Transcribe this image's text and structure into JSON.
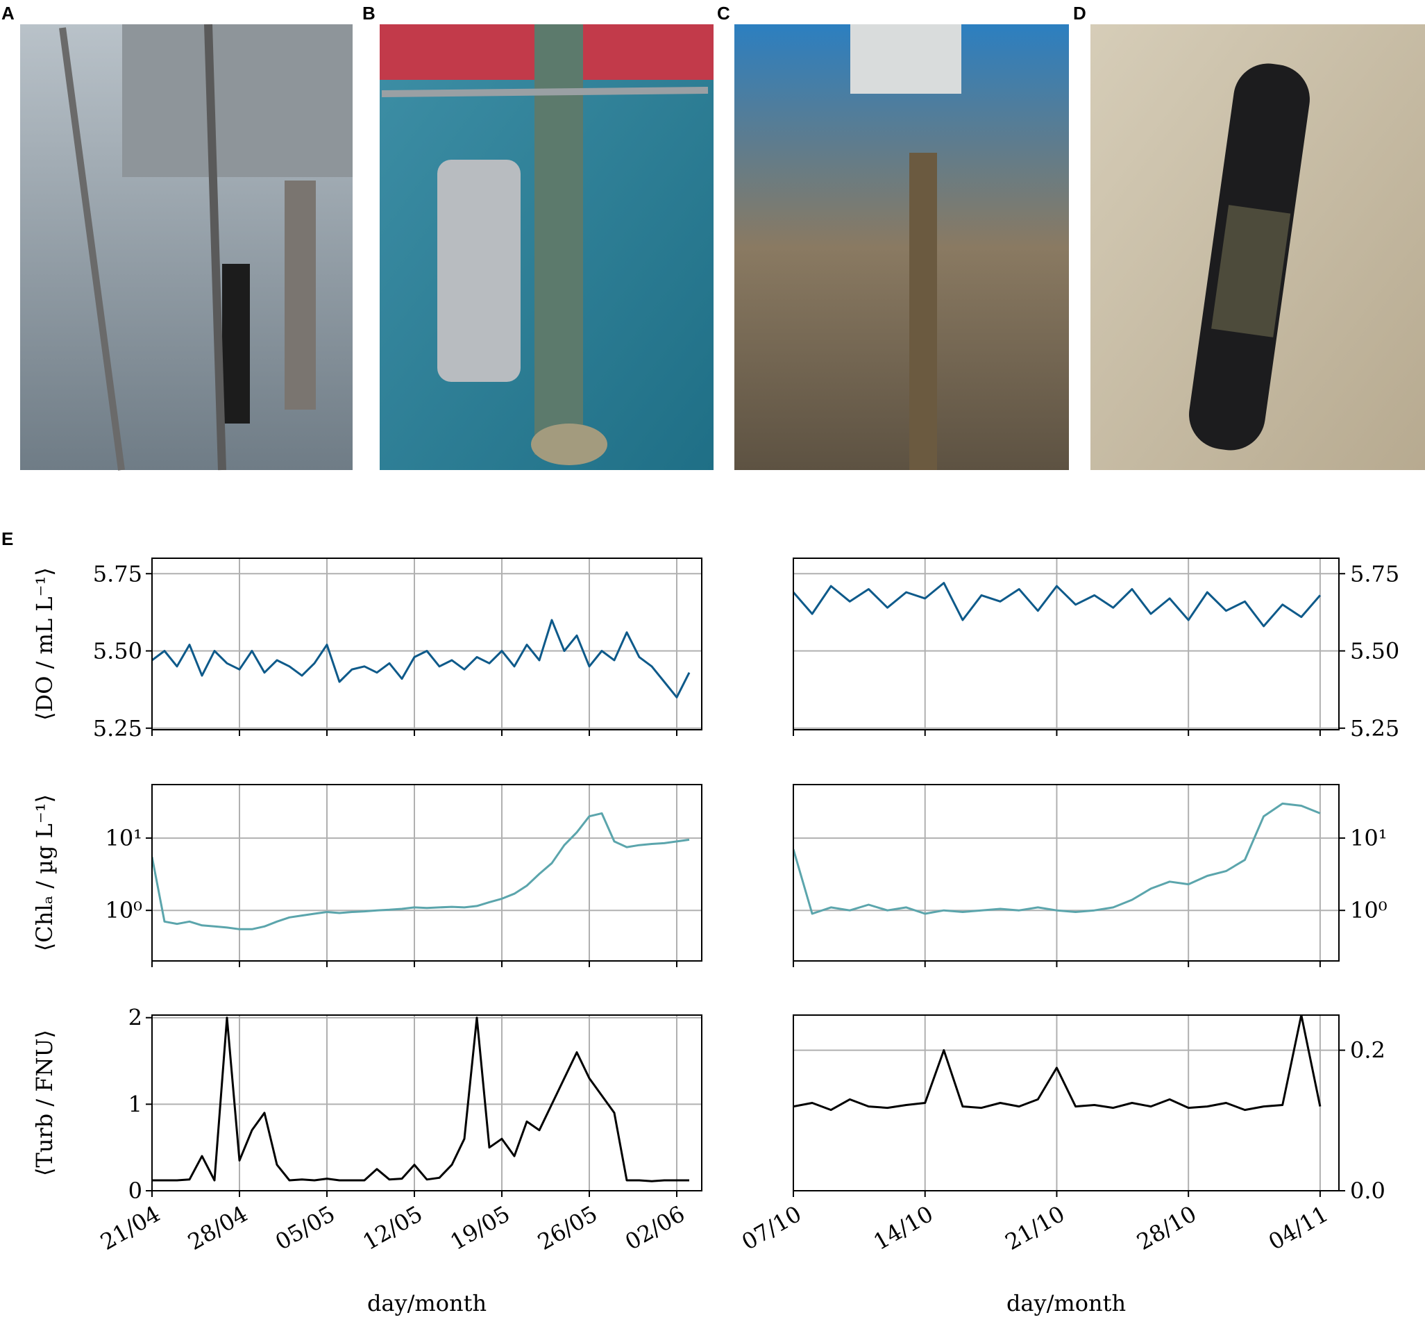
{
  "panel_labels": [
    "A",
    "B",
    "C",
    "D",
    "E"
  ],
  "chart_data": [
    {
      "type": "line",
      "ylabel": "⟨DO / mL L⁻¹⟩",
      "y_axis_side": "left",
      "grid": true,
      "log_y": false,
      "x": [
        "21/04",
        "22/04",
        "23/04",
        "24/04",
        "25/04",
        "26/04",
        "27/04",
        "28/04",
        "29/04",
        "30/04",
        "01/05",
        "02/05",
        "03/05",
        "04/05",
        "05/05",
        "06/05",
        "07/05",
        "08/05",
        "09/05",
        "10/05",
        "11/05",
        "12/05",
        "13/05",
        "14/05",
        "15/05",
        "16/05",
        "17/05",
        "18/05",
        "19/05",
        "20/05",
        "21/05",
        "22/05",
        "23/05",
        "24/05",
        "25/05",
        "26/05",
        "27/05",
        "28/05",
        "29/05",
        "30/05",
        "31/05",
        "01/06",
        "02/06",
        "03/06"
      ],
      "xlim": [
        "21/04",
        "04/06"
      ],
      "xticks": [
        "21/04",
        "28/04",
        "05/05",
        "12/05",
        "19/05",
        "26/05",
        "02/06"
      ],
      "ylim": [
        5.245,
        5.8
      ],
      "yticks": [
        5.25,
        {
          "value": 5.5,
          "label": "5.50"
        },
        5.75
      ],
      "series": [
        {
          "name": "DO",
          "color": "#0e5a8a",
          "values": [
            5.47,
            5.5,
            5.45,
            5.52,
            5.42,
            5.5,
            5.46,
            5.44,
            5.5,
            5.43,
            5.47,
            5.45,
            5.42,
            5.46,
            5.52,
            5.4,
            5.44,
            5.45,
            5.43,
            5.46,
            5.41,
            5.48,
            5.5,
            5.45,
            5.47,
            5.44,
            5.48,
            5.46,
            5.5,
            5.45,
            5.52,
            5.47,
            5.6,
            5.5,
            5.55,
            5.45,
            5.5,
            5.47,
            5.56,
            5.48,
            5.45,
            5.4,
            5.35,
            5.43
          ]
        }
      ]
    },
    {
      "type": "line",
      "y_axis_side": "right",
      "grid": true,
      "log_y": false,
      "x": [
        "07/10",
        "08/10",
        "09/10",
        "10/10",
        "11/10",
        "12/10",
        "13/10",
        "14/10",
        "15/10",
        "16/10",
        "17/10",
        "18/10",
        "19/10",
        "20/10",
        "21/10",
        "22/10",
        "23/10",
        "24/10",
        "25/10",
        "26/10",
        "27/10",
        "28/10",
        "29/10",
        "30/10",
        "31/10",
        "01/11",
        "02/11",
        "03/11",
        "04/11"
      ],
      "xlim": [
        "07/10",
        "05/11"
      ],
      "xticks": [
        "07/10",
        "14/10",
        "21/10",
        "28/10",
        "04/11"
      ],
      "ylim": [
        5.245,
        5.8
      ],
      "yticks": [
        5.25,
        {
          "value": 5.5,
          "label": "5.50"
        },
        5.75
      ],
      "series": [
        {
          "name": "DO",
          "color": "#0e5a8a",
          "values": [
            5.69,
            5.62,
            5.71,
            5.66,
            5.7,
            5.64,
            5.69,
            5.67,
            5.72,
            5.6,
            5.68,
            5.66,
            5.7,
            5.63,
            5.71,
            5.65,
            5.68,
            5.64,
            5.7,
            5.62,
            5.67,
            5.6,
            5.69,
            5.63,
            5.66,
            5.58,
            5.65,
            5.61,
            5.68
          ]
        }
      ]
    },
    {
      "type": "line",
      "ylabel": "⟨Chlₐ / µg L⁻¹⟩",
      "y_axis_side": "left",
      "grid": true,
      "log_y": true,
      "x": [
        "21/04",
        "22/04",
        "23/04",
        "24/04",
        "25/04",
        "26/04",
        "27/04",
        "28/04",
        "29/04",
        "30/04",
        "01/05",
        "02/05",
        "03/05",
        "04/05",
        "05/05",
        "06/05",
        "07/05",
        "08/05",
        "09/05",
        "10/05",
        "11/05",
        "12/05",
        "13/05",
        "14/05",
        "15/05",
        "16/05",
        "17/05",
        "18/05",
        "19/05",
        "20/05",
        "21/05",
        "22/05",
        "23/05",
        "24/05",
        "25/05",
        "26/05",
        "27/05",
        "28/05",
        "29/05",
        "30/05",
        "31/05",
        "01/06",
        "02/06",
        "03/06"
      ],
      "xlim": [
        "21/04",
        "04/06"
      ],
      "xticks": [
        "21/04",
        "28/04",
        "05/05",
        "12/05",
        "19/05",
        "26/05",
        "02/06"
      ],
      "ylim": [
        0.2,
        55
      ],
      "yticks": [
        {
          "value": 1,
          "label": "10⁰"
        },
        {
          "value": 10,
          "label": "10¹"
        }
      ],
      "series": [
        {
          "name": "Chla",
          "color": "#5ba5ac",
          "values": [
            5.5,
            0.7,
            0.65,
            0.7,
            0.62,
            0.6,
            0.58,
            0.55,
            0.55,
            0.6,
            0.7,
            0.8,
            0.85,
            0.9,
            0.95,
            0.92,
            0.95,
            0.97,
            1.0,
            1.02,
            1.05,
            1.1,
            1.08,
            1.1,
            1.12,
            1.1,
            1.15,
            1.3,
            1.45,
            1.7,
            2.2,
            3.2,
            4.5,
            8,
            12,
            20,
            22,
            9,
            7.5,
            8,
            8.3,
            8.5,
            9,
            9.5
          ]
        }
      ]
    },
    {
      "type": "line",
      "y_axis_side": "right",
      "grid": true,
      "log_y": true,
      "x": [
        "07/10",
        "08/10",
        "09/10",
        "10/10",
        "11/10",
        "12/10",
        "13/10",
        "14/10",
        "15/10",
        "16/10",
        "17/10",
        "18/10",
        "19/10",
        "20/10",
        "21/10",
        "22/10",
        "23/10",
        "24/10",
        "25/10",
        "26/10",
        "27/10",
        "28/10",
        "29/10",
        "30/10",
        "31/10",
        "01/11",
        "02/11",
        "03/11",
        "04/11"
      ],
      "xlim": [
        "07/10",
        "05/11"
      ],
      "xticks": [
        "07/10",
        "14/10",
        "21/10",
        "28/10",
        "04/11"
      ],
      "ylim": [
        0.2,
        55
      ],
      "yticks": [
        {
          "value": 1,
          "label": "10⁰"
        },
        {
          "value": 10,
          "label": "10¹"
        }
      ],
      "series": [
        {
          "name": "Chla",
          "color": "#5ba5ac",
          "values": [
            7,
            0.9,
            1.1,
            1.0,
            1.2,
            1.0,
            1.1,
            0.9,
            1.0,
            0.95,
            1.0,
            1.05,
            1.0,
            1.1,
            1.0,
            0.95,
            1.0,
            1.1,
            1.4,
            2.0,
            2.5,
            2.3,
            3.0,
            3.5,
            5.0,
            20,
            30,
            28,
            22
          ]
        }
      ]
    },
    {
      "type": "line",
      "ylabel": "⟨Turb / FNU⟩",
      "xlabel": "day/month",
      "y_axis_side": "left",
      "grid": true,
      "log_y": false,
      "x": [
        "21/04",
        "22/04",
        "23/04",
        "24/04",
        "25/04",
        "26/04",
        "27/04",
        "28/04",
        "29/04",
        "30/04",
        "01/05",
        "02/05",
        "03/05",
        "04/05",
        "05/05",
        "06/05",
        "07/05",
        "08/05",
        "09/05",
        "10/05",
        "11/05",
        "12/05",
        "13/05",
        "14/05",
        "15/05",
        "16/05",
        "17/05",
        "18/05",
        "19/05",
        "20/05",
        "21/05",
        "22/05",
        "23/05",
        "24/05",
        "25/05",
        "26/05",
        "27/05",
        "28/05",
        "29/05",
        "30/05",
        "31/05",
        "01/06",
        "02/06",
        "03/06"
      ],
      "xlim": [
        "21/04",
        "04/06"
      ],
      "xticks": [
        "21/04",
        "28/04",
        "05/05",
        "12/05",
        "19/05",
        "26/05",
        "02/06"
      ],
      "ylim": [
        0,
        2.03
      ],
      "yticks": [
        0,
        1,
        2
      ],
      "series": [
        {
          "name": "Turb",
          "color": "#000000",
          "values": [
            0.12,
            0.12,
            0.12,
            0.13,
            0.4,
            0.12,
            2.0,
            0.35,
            0.7,
            0.9,
            0.3,
            0.12,
            0.13,
            0.12,
            0.14,
            0.12,
            0.12,
            0.12,
            0.25,
            0.13,
            0.14,
            0.3,
            0.13,
            0.15,
            0.3,
            0.6,
            2.0,
            0.5,
            0.6,
            0.4,
            0.8,
            0.7,
            1.0,
            1.3,
            1.6,
            1.3,
            1.1,
            0.9,
            0.12,
            0.12,
            0.11,
            0.12,
            0.12,
            0.12
          ]
        }
      ]
    },
    {
      "type": "line",
      "xlabel": "day/month",
      "y_axis_side": "right",
      "grid": true,
      "log_y": false,
      "x": [
        "07/10",
        "08/10",
        "09/10",
        "10/10",
        "11/10",
        "12/10",
        "13/10",
        "14/10",
        "15/10",
        "16/10",
        "17/10",
        "18/10",
        "19/10",
        "20/10",
        "21/10",
        "22/10",
        "23/10",
        "24/10",
        "25/10",
        "26/10",
        "27/10",
        "28/10",
        "29/10",
        "30/10",
        "31/10",
        "01/11",
        "02/11",
        "03/11",
        "04/11"
      ],
      "xlim": [
        "07/10",
        "05/11"
      ],
      "xticks": [
        "07/10",
        "14/10",
        "21/10",
        "28/10",
        "04/11"
      ],
      "ylim": [
        0,
        0.25
      ],
      "yticks": [
        {
          "value": 0,
          "label": "0.0"
        },
        0.2
      ],
      "series": [
        {
          "name": "Turb",
          "color": "#000000",
          "values": [
            0.12,
            0.125,
            0.115,
            0.13,
            0.12,
            0.118,
            0.122,
            0.125,
            0.2,
            0.12,
            0.118,
            0.125,
            0.12,
            0.13,
            0.175,
            0.12,
            0.122,
            0.118,
            0.125,
            0.12,
            0.13,
            0.118,
            0.12,
            0.125,
            0.115,
            0.12,
            0.122,
            0.25,
            0.12
          ]
        }
      ]
    }
  ]
}
